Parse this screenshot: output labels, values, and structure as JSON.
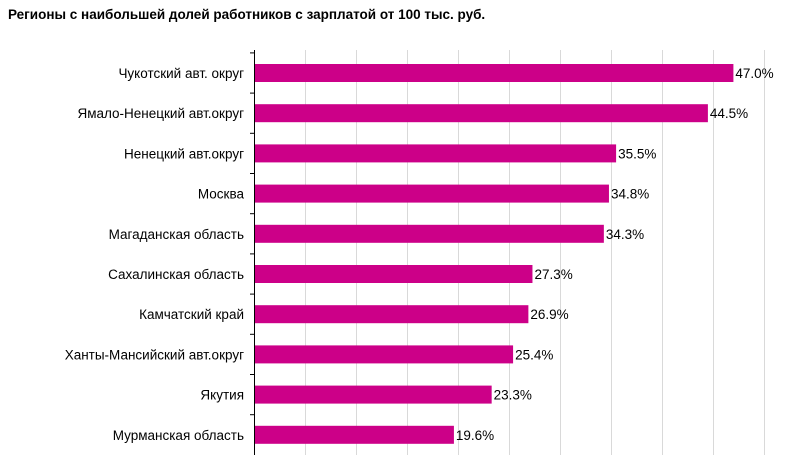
{
  "chart_data": {
    "type": "bar",
    "orientation": "horizontal",
    "title": "Регионы с наибольшей долей работников с зарплатой от 100 тыс. руб.",
    "categories": [
      "Чукотский авт. округ",
      "Ямало-Ненецкий авт.округ",
      "Ненецкий авт.округ",
      "Москва",
      "Магаданская область",
      "Сахалинская область",
      "Камчатский край",
      "Ханты-Мансийский авт.округ",
      "Якутия",
      "Мурманская область"
    ],
    "values": [
      47.0,
      44.5,
      35.5,
      34.8,
      34.3,
      27.3,
      26.9,
      25.4,
      23.3,
      19.6
    ],
    "value_labels": [
      "47.0%",
      "44.5%",
      "35.5%",
      "34.8%",
      "34.3%",
      "27.3%",
      "26.9%",
      "25.4%",
      "23.3%",
      "19.6%"
    ],
    "xlim": [
      0,
      50
    ],
    "x_grid_step": 5,
    "grid": true,
    "bar_color": "#cc0088",
    "grid_color": "#d9d9d9"
  }
}
